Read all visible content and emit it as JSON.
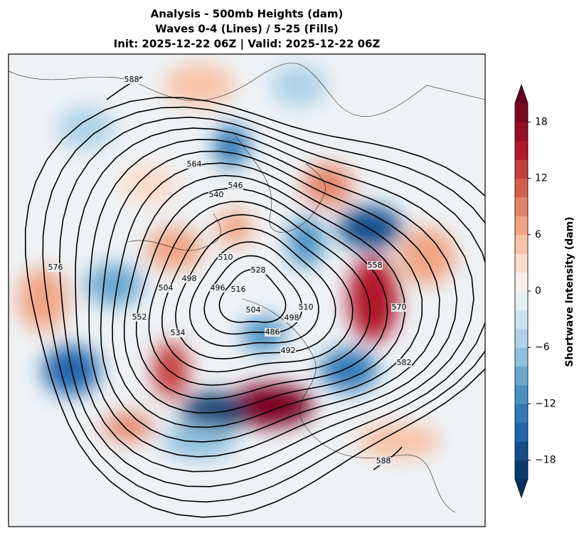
{
  "header": {
    "title_lines": [
      "Analysis - 500mb Heights (dam)",
      "Waves 0-4 (Lines) / 5-25 (Fills)",
      "Init: 2025-12-22 06Z | Valid: 2025-12-22 06Z"
    ]
  },
  "colorbar": {
    "label": "Shortwave Intensity (dam)",
    "lim": [
      -20,
      20
    ],
    "ticks": [
      {
        "value": -18,
        "label": "−18"
      },
      {
        "value": -12,
        "label": "−12"
      },
      {
        "value": -6,
        "label": "−6"
      },
      0,
      6,
      12,
      18
    ],
    "colors": [
      "#0b3b6e",
      "#154f8a",
      "#2166ac",
      "#3279b6",
      "#4a91c3",
      "#6aa8d0",
      "#8fc0dd",
      "#afd3e7",
      "#cce2ef",
      "#e6eff4",
      "#f8efeb",
      "#fbdccb",
      "#f8c3a7",
      "#f1a484",
      "#e48468",
      "#d6604d",
      "#c53e3d",
      "#b2182b",
      "#960d25",
      "#7a0620"
    ],
    "under_color": "#053061",
    "over_color": "#67001f"
  },
  "contour_labels": [
    "588",
    "564",
    "546",
    "540",
    "576",
    "510",
    "498",
    "504",
    "496",
    "516",
    "528",
    "552",
    "534",
    "558",
    "570",
    "582",
    "492",
    "486",
    "498",
    "510",
    "504",
    "588"
  ]
}
